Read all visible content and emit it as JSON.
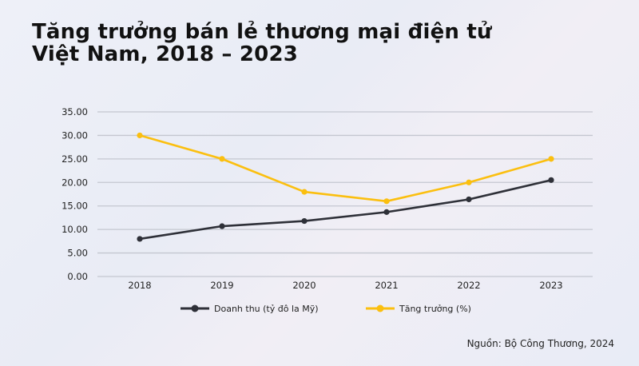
{
  "chart_data": {
    "type": "line",
    "title_line1": "Tăng trưởng bán lẻ thương mại điện tử",
    "title_line2": "Việt Nam, 2018 – 2023",
    "categories": [
      "2018",
      "2019",
      "2020",
      "2021",
      "2022",
      "2023"
    ],
    "ylim": [
      0,
      35
    ],
    "yticks": [
      "0.00",
      "5.00",
      "10.00",
      "15.00",
      "20.00",
      "25.00",
      "30.00",
      "35.00"
    ],
    "grid": true,
    "legend_position": "bottom",
    "series": [
      {
        "name": "Doanh thu (tỷ đô la Mỹ)",
        "color": "#2e3038",
        "values": [
          8.0,
          10.7,
          11.8,
          13.7,
          16.4,
          20.5
        ]
      },
      {
        "name": "Tăng trưởng (%)",
        "color": "#fbbf0f",
        "values": [
          30,
          25,
          18,
          16,
          20,
          25
        ]
      }
    ],
    "source": "Nguồn: Bộ Công Thương, 2024"
  }
}
